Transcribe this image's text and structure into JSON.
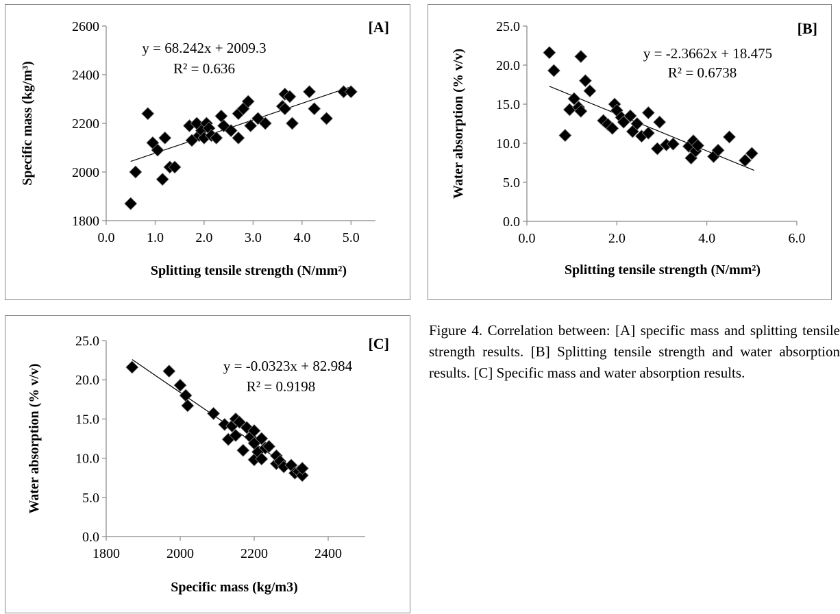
{
  "caption": "Figure 4. Correlation between: [A] specific mass and splitting tensile strength results. [B] Splitting tensile strength and water absorption results. [C] Specific mass and water absorption results.",
  "chart_data": [
    {
      "id": "A",
      "type": "scatter",
      "panel_tag": "[A]",
      "xlabel": "Splitting tensile strength (N/mm²)",
      "ylabel": "Specific mass (kg/m³)",
      "xlim": [
        0,
        5.5
      ],
      "ylim": [
        1800,
        2600
      ],
      "xticks": [
        "0.0",
        "1.0",
        "2.0",
        "3.0",
        "4.0",
        "5.0"
      ],
      "xtick_values": [
        0,
        1,
        2,
        3,
        4,
        5
      ],
      "yticks": [
        "1800",
        "2000",
        "2200",
        "2400",
        "2600"
      ],
      "ytick_values": [
        1800,
        2000,
        2200,
        2400,
        2600
      ],
      "equation": "y = 68.242x + 2009.3",
      "r2": "R² = 0.636",
      "trendline": {
        "slope": 68.242,
        "intercept": 2009.3,
        "x_range": [
          0.5,
          5.0
        ]
      },
      "points": [
        [
          0.5,
          1870
        ],
        [
          0.6,
          2000
        ],
        [
          0.85,
          2240
        ],
        [
          0.95,
          2120
        ],
        [
          1.05,
          2090
        ],
        [
          1.15,
          1970
        ],
        [
          1.2,
          2140
        ],
        [
          1.3,
          2020
        ],
        [
          1.4,
          2020
        ],
        [
          1.7,
          2190
        ],
        [
          1.75,
          2130
        ],
        [
          1.85,
          2200
        ],
        [
          1.9,
          2150
        ],
        [
          1.95,
          2170
        ],
        [
          2.0,
          2140
        ],
        [
          2.05,
          2200
        ],
        [
          2.1,
          2180
        ],
        [
          2.15,
          2150
        ],
        [
          2.25,
          2140
        ],
        [
          2.35,
          2230
        ],
        [
          2.4,
          2190
        ],
        [
          2.55,
          2170
        ],
        [
          2.7,
          2240
        ],
        [
          2.7,
          2140
        ],
        [
          2.8,
          2260
        ],
        [
          2.9,
          2290
        ],
        [
          2.95,
          2190
        ],
        [
          3.1,
          2220
        ],
        [
          3.25,
          2200
        ],
        [
          3.6,
          2270
        ],
        [
          3.65,
          2320
        ],
        [
          3.65,
          2260
        ],
        [
          3.75,
          2310
        ],
        [
          3.8,
          2200
        ],
        [
          4.15,
          2330
        ],
        [
          4.25,
          2260
        ],
        [
          4.5,
          2220
        ],
        [
          4.85,
          2330
        ],
        [
          5.0,
          2330
        ]
      ]
    },
    {
      "id": "B",
      "type": "scatter",
      "panel_tag": "[B]",
      "xlabel": "Splitting tensile strength (N/mm²)",
      "ylabel": "Water absorption (% v/v)",
      "xlim": [
        0,
        6
      ],
      "ylim": [
        0,
        25
      ],
      "xticks": [
        "0.0",
        "2.0",
        "4.0",
        "6.0"
      ],
      "xtick_values": [
        0,
        2,
        4,
        6
      ],
      "yticks": [
        "0.0",
        "5.0",
        "10.0",
        "15.0",
        "20.0",
        "25.0"
      ],
      "ytick_values": [
        0,
        5,
        10,
        15,
        20,
        25
      ],
      "equation": "y = -2.3662x + 18.475",
      "r2": "R² = 0.6738",
      "trendline": {
        "slope": -2.3662,
        "intercept": 18.475,
        "x_range": [
          0.5,
          5.05
        ]
      },
      "points": [
        [
          0.5,
          21.6
        ],
        [
          0.6,
          19.3
        ],
        [
          0.85,
          11.0
        ],
        [
          0.95,
          14.3
        ],
        [
          1.05,
          15.7
        ],
        [
          1.15,
          14.6
        ],
        [
          1.2,
          14.1
        ],
        [
          1.2,
          21.1
        ],
        [
          1.3,
          18.0
        ],
        [
          1.4,
          16.7
        ],
        [
          1.7,
          12.9
        ],
        [
          1.8,
          12.4
        ],
        [
          1.9,
          11.9
        ],
        [
          1.95,
          15.0
        ],
        [
          2.0,
          14.2
        ],
        [
          2.1,
          13.3
        ],
        [
          2.15,
          12.7
        ],
        [
          2.3,
          13.5
        ],
        [
          2.35,
          11.5
        ],
        [
          2.45,
          12.5
        ],
        [
          2.55,
          10.9
        ],
        [
          2.7,
          11.3
        ],
        [
          2.7,
          13.9
        ],
        [
          2.9,
          9.3
        ],
        [
          2.95,
          12.7
        ],
        [
          3.1,
          9.8
        ],
        [
          3.25,
          9.9
        ],
        [
          3.6,
          9.6
        ],
        [
          3.65,
          8.1
        ],
        [
          3.7,
          10.3
        ],
        [
          3.75,
          9.0
        ],
        [
          3.8,
          9.7
        ],
        [
          4.15,
          8.3
        ],
        [
          4.25,
          9.1
        ],
        [
          4.5,
          10.8
        ],
        [
          4.85,
          7.8
        ],
        [
          5.0,
          8.7
        ]
      ]
    },
    {
      "id": "C",
      "type": "scatter",
      "panel_tag": "[C]",
      "xlabel": "Specific mass (kg/m3)",
      "ylabel": "Water absorption (% v/v)",
      "xlim": [
        1800,
        2500
      ],
      "ylim": [
        0,
        25
      ],
      "xticks": [
        "1800",
        "2000",
        "2200",
        "2400"
      ],
      "xtick_values": [
        1800,
        2000,
        2200,
        2400
      ],
      "yticks": [
        "0.0",
        "5.0",
        "10.0",
        "15.0",
        "20.0",
        "25.0"
      ],
      "ytick_values": [
        0,
        5,
        10,
        15,
        20,
        25
      ],
      "equation": "y = -0.0323x + 82.984",
      "r2": "R² = 0.9198",
      "trendline": {
        "slope": -0.0323,
        "intercept": 82.984,
        "x_range": [
          1870,
          2330
        ]
      },
      "points": [
        [
          1870,
          21.6
        ],
        [
          1970,
          21.1
        ],
        [
          2000,
          19.3
        ],
        [
          2015,
          18.0
        ],
        [
          2020,
          16.7
        ],
        [
          2090,
          15.7
        ],
        [
          2120,
          14.3
        ],
        [
          2130,
          12.4
        ],
        [
          2140,
          14.1
        ],
        [
          2150,
          15.0
        ],
        [
          2150,
          12.9
        ],
        [
          2160,
          14.6
        ],
        [
          2170,
          11.0
        ],
        [
          2180,
          13.9
        ],
        [
          2190,
          12.7
        ],
        [
          2200,
          13.5
        ],
        [
          2200,
          11.9
        ],
        [
          2200,
          9.8
        ],
        [
          2210,
          10.8
        ],
        [
          2220,
          9.9
        ],
        [
          2220,
          12.5
        ],
        [
          2230,
          11.3
        ],
        [
          2240,
          11.5
        ],
        [
          2260,
          9.3
        ],
        [
          2260,
          10.3
        ],
        [
          2270,
          9.6
        ],
        [
          2280,
          8.9
        ],
        [
          2300,
          9.1
        ],
        [
          2310,
          8.1
        ],
        [
          2320,
          8.3
        ],
        [
          2330,
          7.8
        ],
        [
          2330,
          8.7
        ]
      ]
    }
  ]
}
